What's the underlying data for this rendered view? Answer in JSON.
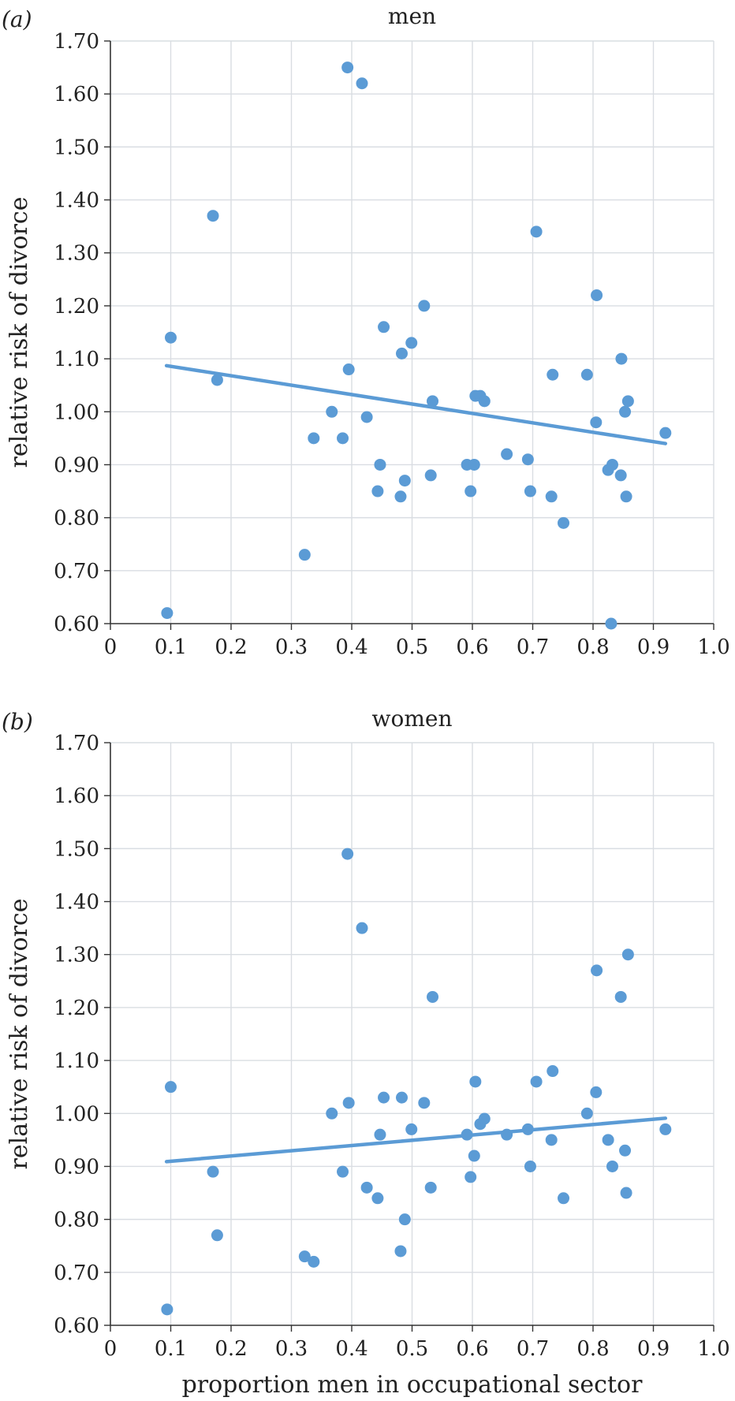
{
  "chart_data": [
    {
      "type": "scatter",
      "panel_label": "(a)",
      "title": "men",
      "xlabel": "",
      "ylabel": "relative risk of divorce",
      "xlim": [
        0,
        1.0
      ],
      "ylim": [
        0.6,
        1.7
      ],
      "xticks": [
        "0",
        "0.1",
        "0.2",
        "0.3",
        "0.4",
        "0.5",
        "0.6",
        "0.7",
        "0.8",
        "0.9",
        "1.0"
      ],
      "yticks": [
        "0.60",
        "0.70",
        "0.80",
        "0.90",
        "1.00",
        "1.10",
        "1.20",
        "1.30",
        "1.40",
        "1.50",
        "1.60",
        "1.70"
      ],
      "grid": true,
      "marker_color": "#5b9bd5",
      "trendline_color": "#5b9bd5",
      "points": [
        {
          "x": 0.094,
          "y": 0.62
        },
        {
          "x": 0.1,
          "y": 1.14
        },
        {
          "x": 0.17,
          "y": 1.37
        },
        {
          "x": 0.177,
          "y": 1.06
        },
        {
          "x": 0.322,
          "y": 0.73
        },
        {
          "x": 0.337,
          "y": 0.95
        },
        {
          "x": 0.367,
          "y": 1.0
        },
        {
          "x": 0.385,
          "y": 0.95
        },
        {
          "x": 0.393,
          "y": 1.65
        },
        {
          "x": 0.395,
          "y": 1.08
        },
        {
          "x": 0.417,
          "y": 1.62
        },
        {
          "x": 0.425,
          "y": 0.99
        },
        {
          "x": 0.443,
          "y": 0.85
        },
        {
          "x": 0.447,
          "y": 0.9
        },
        {
          "x": 0.453,
          "y": 1.16
        },
        {
          "x": 0.481,
          "y": 0.84
        },
        {
          "x": 0.483,
          "y": 1.11
        },
        {
          "x": 0.488,
          "y": 0.87
        },
        {
          "x": 0.499,
          "y": 1.13
        },
        {
          "x": 0.52,
          "y": 1.2
        },
        {
          "x": 0.531,
          "y": 0.88
        },
        {
          "x": 0.534,
          "y": 1.02
        },
        {
          "x": 0.591,
          "y": 0.9
        },
        {
          "x": 0.597,
          "y": 0.85
        },
        {
          "x": 0.603,
          "y": 0.9
        },
        {
          "x": 0.605,
          "y": 1.03
        },
        {
          "x": 0.613,
          "y": 1.03
        },
        {
          "x": 0.62,
          "y": 1.02
        },
        {
          "x": 0.657,
          "y": 0.92
        },
        {
          "x": 0.692,
          "y": 0.91
        },
        {
          "x": 0.696,
          "y": 0.85
        },
        {
          "x": 0.706,
          "y": 1.34
        },
        {
          "x": 0.731,
          "y": 0.84
        },
        {
          "x": 0.733,
          "y": 1.07
        },
        {
          "x": 0.751,
          "y": 0.79
        },
        {
          "x": 0.79,
          "y": 1.07
        },
        {
          "x": 0.805,
          "y": 0.98
        },
        {
          "x": 0.806,
          "y": 1.22
        },
        {
          "x": 0.825,
          "y": 0.89
        },
        {
          "x": 0.83,
          "y": 0.6
        },
        {
          "x": 0.832,
          "y": 0.9
        },
        {
          "x": 0.846,
          "y": 0.88
        },
        {
          "x": 0.847,
          "y": 1.1
        },
        {
          "x": 0.853,
          "y": 1.0
        },
        {
          "x": 0.855,
          "y": 0.84
        },
        {
          "x": 0.858,
          "y": 1.02
        },
        {
          "x": 0.92,
          "y": 0.96
        }
      ],
      "trendline": {
        "x": [
          0.093,
          0.92
        ],
        "y": [
          1.087,
          0.94
        ]
      }
    },
    {
      "type": "scatter",
      "panel_label": "(b)",
      "title": "women",
      "xlabel": "proportion men in occupational sector",
      "ylabel": "relative risk of divorce",
      "xlim": [
        0,
        1.0
      ],
      "ylim": [
        0.6,
        1.7
      ],
      "xticks": [
        "0",
        "0.1",
        "0.2",
        "0.3",
        "0.4",
        "0.5",
        "0.6",
        "0.7",
        "0.8",
        "0.9",
        "1.0"
      ],
      "yticks": [
        "0.60",
        "0.70",
        "0.80",
        "0.90",
        "1.00",
        "1.10",
        "1.20",
        "1.30",
        "1.40",
        "1.50",
        "1.60",
        "1.70"
      ],
      "grid": true,
      "marker_color": "#5b9bd5",
      "trendline_color": "#5b9bd5",
      "points": [
        {
          "x": 0.094,
          "y": 0.63
        },
        {
          "x": 0.1,
          "y": 1.05
        },
        {
          "x": 0.17,
          "y": 0.89
        },
        {
          "x": 0.177,
          "y": 0.77
        },
        {
          "x": 0.322,
          "y": 0.73
        },
        {
          "x": 0.337,
          "y": 0.72
        },
        {
          "x": 0.367,
          "y": 1.0
        },
        {
          "x": 0.385,
          "y": 0.89
        },
        {
          "x": 0.393,
          "y": 1.49
        },
        {
          "x": 0.395,
          "y": 1.02
        },
        {
          "x": 0.417,
          "y": 1.35
        },
        {
          "x": 0.425,
          "y": 0.86
        },
        {
          "x": 0.443,
          "y": 0.84
        },
        {
          "x": 0.447,
          "y": 0.96
        },
        {
          "x": 0.453,
          "y": 1.03
        },
        {
          "x": 0.481,
          "y": 0.74
        },
        {
          "x": 0.483,
          "y": 1.03
        },
        {
          "x": 0.488,
          "y": 0.8
        },
        {
          "x": 0.499,
          "y": 0.97
        },
        {
          "x": 0.52,
          "y": 1.02
        },
        {
          "x": 0.531,
          "y": 0.86
        },
        {
          "x": 0.534,
          "y": 1.22
        },
        {
          "x": 0.591,
          "y": 0.96
        },
        {
          "x": 0.597,
          "y": 0.88
        },
        {
          "x": 0.603,
          "y": 0.92
        },
        {
          "x": 0.605,
          "y": 1.06
        },
        {
          "x": 0.613,
          "y": 0.98
        },
        {
          "x": 0.62,
          "y": 0.99
        },
        {
          "x": 0.657,
          "y": 0.96
        },
        {
          "x": 0.692,
          "y": 0.97
        },
        {
          "x": 0.696,
          "y": 0.9
        },
        {
          "x": 0.706,
          "y": 1.06
        },
        {
          "x": 0.731,
          "y": 0.95
        },
        {
          "x": 0.733,
          "y": 1.08
        },
        {
          "x": 0.751,
          "y": 0.84
        },
        {
          "x": 0.79,
          "y": 1.0
        },
        {
          "x": 0.805,
          "y": 1.04
        },
        {
          "x": 0.806,
          "y": 1.27
        },
        {
          "x": 0.825,
          "y": 0.95
        },
        {
          "x": 0.832,
          "y": 0.9
        },
        {
          "x": 0.846,
          "y": 1.22
        },
        {
          "x": 0.853,
          "y": 0.93
        },
        {
          "x": 0.855,
          "y": 0.85
        },
        {
          "x": 0.858,
          "y": 1.3
        },
        {
          "x": 0.92,
          "y": 0.97
        }
      ],
      "trendline": {
        "x": [
          0.093,
          0.92
        ],
        "y": [
          0.909,
          0.991
        ]
      }
    }
  ]
}
